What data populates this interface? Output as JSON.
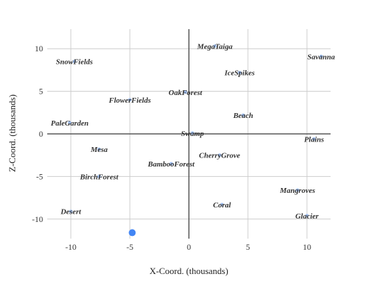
{
  "chart_data": {
    "type": "scatter",
    "xlabel": "X-Coord. (thousands)",
    "ylabel": "Z-Coord. (thousands)",
    "xlim": [
      -12,
      12
    ],
    "ylim": [
      -12.3,
      12.3
    ],
    "x_ticks": [
      -10,
      -5,
      0,
      5,
      10
    ],
    "x_tick_labels": [
      "-10",
      "-5",
      "0",
      "5",
      "10"
    ],
    "y_ticks": [
      10,
      5,
      0,
      -5,
      -10
    ],
    "y_tick_labels": [
      "10",
      "5",
      "0",
      "-5",
      "-10"
    ],
    "grid": true,
    "colors": {
      "point": "#4285f4",
      "label_point": "#a4c3f5",
      "grid": "#cccccc",
      "zero_axis": "#555555"
    },
    "points": [
      {
        "label": "MegaTaiga",
        "x": 2.2,
        "y": 10.3
      },
      {
        "label": "Savanna",
        "x": 11.2,
        "y": 9.1
      },
      {
        "label": "SnowFields",
        "x": -9.7,
        "y": 8.5
      },
      {
        "label": "IceSpikes",
        "x": 4.3,
        "y": 7.2
      },
      {
        "label": "OakForest",
        "x": -0.3,
        "y": 4.9
      },
      {
        "label": "FlowerFields",
        "x": -5,
        "y": 4.0
      },
      {
        "label": "Beach",
        "x": 4.6,
        "y": 2.2
      },
      {
        "label": "PaleGarden",
        "x": -10.1,
        "y": 1.3
      },
      {
        "label": "Swamp",
        "x": 0.3,
        "y": 0.1
      },
      {
        "label": "Plains",
        "x": 10.6,
        "y": -0.6
      },
      {
        "label": "Mesa",
        "x": -7.6,
        "y": -1.8
      },
      {
        "label": "CherryGrove",
        "x": 2.6,
        "y": -2.5
      },
      {
        "label": "BambooForest",
        "x": -1.5,
        "y": -3.5
      },
      {
        "label": "BirchForest",
        "x": -7.6,
        "y": -5.0
      },
      {
        "label": "Mangroves",
        "x": 9.2,
        "y": -6.6
      },
      {
        "label": "Coral",
        "x": 2.8,
        "y": -8.3
      },
      {
        "label": "Desert",
        "x": -10,
        "y": -9.1
      },
      {
        "label": "Glacier",
        "x": 10,
        "y": -9.6
      },
      {
        "label": "",
        "x": -4.8,
        "y": -11.6
      }
    ]
  }
}
